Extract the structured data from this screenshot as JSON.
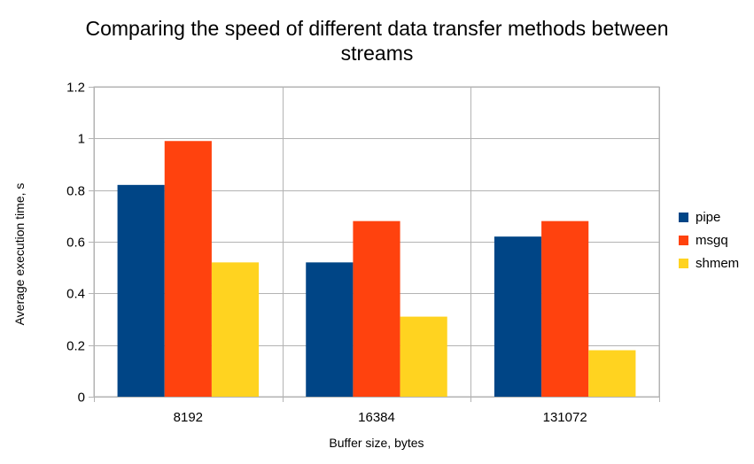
{
  "chart_data": {
    "type": "bar",
    "title_lines": [
      "Comparing the speed of different data transfer methods between",
      "streams"
    ],
    "xlabel": "Buffer size, bytes",
    "ylabel": "Average execution time, s",
    "categories": [
      "8192",
      "16384",
      "131072"
    ],
    "ylim": [
      0,
      1.2
    ],
    "yticks": [
      "0",
      "0.2",
      "0.4",
      "0.6",
      "0.8",
      "1",
      "1.2"
    ],
    "grid": true,
    "legend_position": "right",
    "series": [
      {
        "name": "pipe",
        "color": "#004586",
        "values": [
          0.82,
          0.52,
          0.62
        ]
      },
      {
        "name": "msgq",
        "color": "#ff420e",
        "values": [
          0.99,
          0.68,
          0.68
        ]
      },
      {
        "name": "shmem",
        "color": "#ffd320",
        "values": [
          0.52,
          0.31,
          0.18
        ]
      }
    ]
  }
}
